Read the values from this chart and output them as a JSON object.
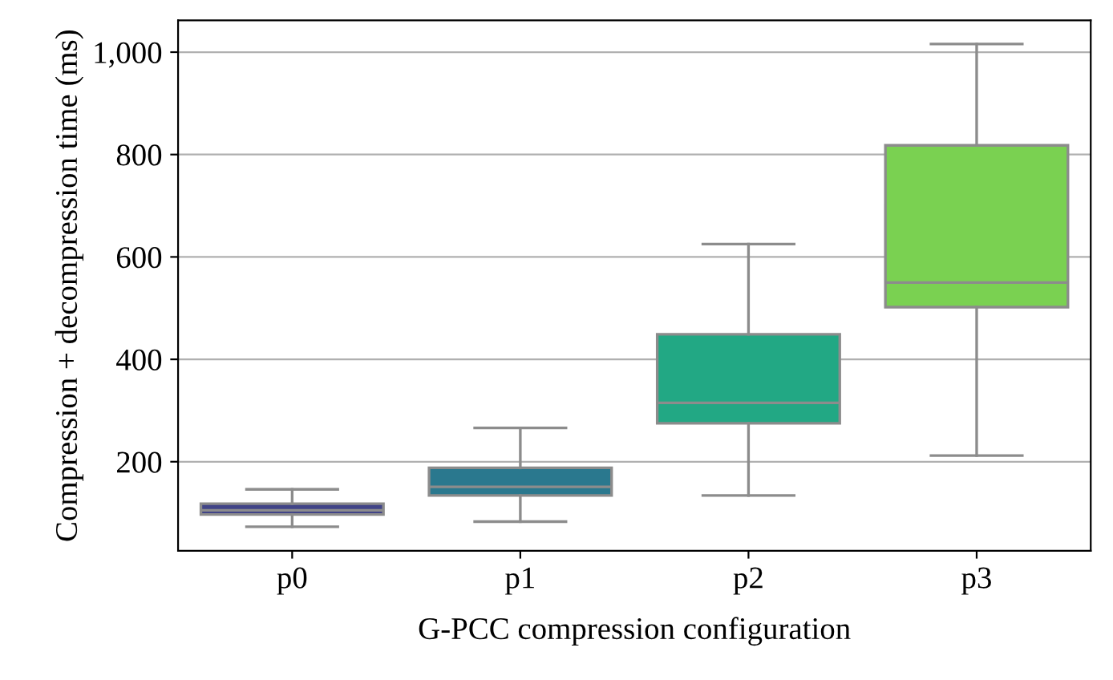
{
  "chart_data": {
    "type": "box",
    "xlabel": "G-PCC compression configuration",
    "ylabel": "Compression + decompression time (ms)",
    "categories": [
      "p0",
      "p1",
      "p2",
      "p3"
    ],
    "colors": [
      "#414487",
      "#2a788e",
      "#22a884",
      "#7ad151"
    ],
    "boxes": [
      {
        "low": 73,
        "q1": 97,
        "median": 105,
        "q3": 118,
        "high": 146
      },
      {
        "low": 83,
        "q1": 134,
        "median": 151,
        "q3": 188,
        "high": 266
      },
      {
        "low": 134,
        "q1": 275,
        "median": 315,
        "q3": 449,
        "high": 625
      },
      {
        "low": 212,
        "q1": 502,
        "median": 550,
        "q3": 818,
        "high": 1016
      }
    ],
    "ylim": [
      26,
      1062
    ],
    "yticks": [
      200,
      400,
      600,
      800,
      {
        "value": 1000,
        "label": "1,000"
      }
    ],
    "grid": "y"
  }
}
